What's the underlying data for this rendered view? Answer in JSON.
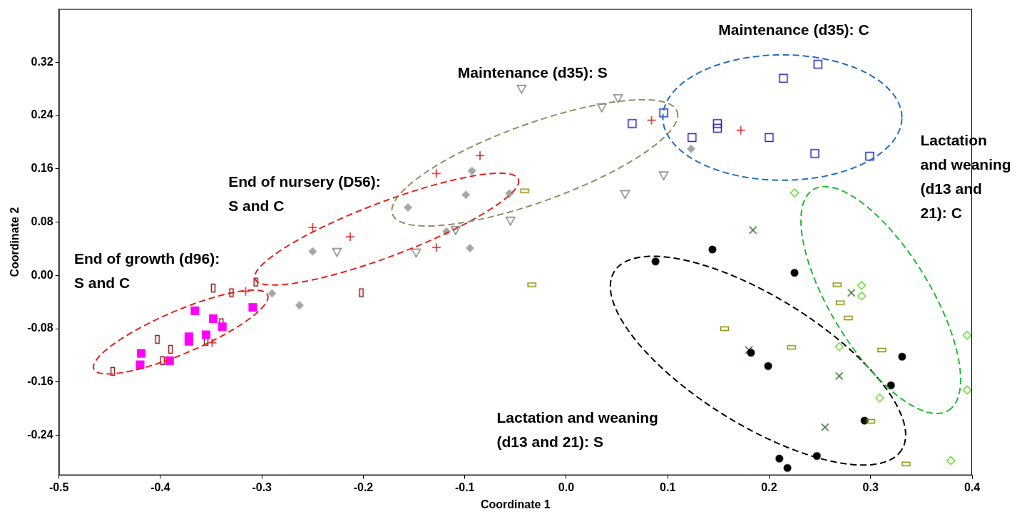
{
  "chart_data": {
    "type": "scatter",
    "x_label": "Coordinate 1",
    "y_label": "Coordinate 2",
    "xlim": [
      -0.5,
      0.4
    ],
    "xticks": [
      -0.5,
      -0.4,
      -0.3,
      -0.2,
      -0.1,
      {
        "value": 0,
        "label": "0.0"
      },
      0.1,
      0.2,
      0.3,
      0.4
    ],
    "ylim": [
      -0.3,
      0.4
    ],
    "yticks": [
      -0.24,
      -0.16,
      -0.08,
      {
        "value": 0,
        "label": "0.00"
      },
      0.08,
      0.16,
      0.24,
      0.32
    ],
    "grid": false,
    "series": [
      {
        "color": "#ff00ff",
        "marker": "square",
        "x": [
          -0.42,
          -0.419,
          -0.391,
          -0.372,
          -0.372,
          -0.366,
          -0.355,
          -0.348,
          -0.339,
          -0.309
        ],
        "y": [
          -0.134,
          -0.117,
          -0.128,
          -0.099,
          -0.092,
          -0.053,
          -0.089,
          -0.065,
          -0.077,
          -0.048
        ]
      },
      {
        "color": "#8b1a1a",
        "marker": "open_tall_rect",
        "x": [
          -0.447,
          -0.403,
          -0.39,
          -0.398,
          -0.355,
          -0.348,
          -0.34,
          -0.33,
          -0.306,
          -0.202
        ],
        "y": [
          -0.144,
          -0.096,
          -0.111,
          -0.128,
          -0.099,
          -0.019,
          -0.071,
          -0.026,
          -0.01,
          -0.026
        ]
      },
      {
        "color": "#d42020",
        "marker": "plus",
        "x": [
          -0.25,
          -0.213,
          -0.128,
          -0.128,
          -0.085,
          0.084,
          0.172,
          -0.316,
          -0.349
        ],
        "y": [
          0.072,
          0.058,
          0.153,
          0.042,
          0.18,
          0.233,
          0.218,
          -0.024,
          -0.101
        ]
      },
      {
        "color": "#a6a6a6",
        "marker": "diamond",
        "x": [
          -0.25,
          -0.263,
          -0.29,
          -0.156,
          -0.118,
          -0.099,
          -0.093,
          -0.095,
          -0.056,
          0.123
        ],
        "y": [
          0.036,
          -0.045,
          -0.027,
          0.102,
          0.066,
          0.121,
          0.157,
          0.041,
          0.123,
          0.19
        ]
      },
      {
        "color": "#7f7f7f",
        "marker": "open_triangle_down",
        "x": [
          -0.226,
          -0.148,
          -0.109,
          -0.055,
          -0.044,
          0.035,
          0.051,
          0.058,
          0.096
        ],
        "y": [
          0.035,
          0.034,
          0.068,
          0.082,
          0.28,
          0.252,
          0.266,
          0.122,
          0.15
        ]
      },
      {
        "color": "#2020c0",
        "marker": "open_square",
        "x": [
          0.065,
          0.214,
          0.248,
          0.096,
          0.124,
          0.149,
          0.149,
          0.2,
          0.245,
          0.299
        ],
        "y": [
          0.228,
          0.296,
          0.317,
          0.244,
          0.207,
          0.228,
          0.221,
          0.207,
          0.183,
          0.179
        ]
      },
      {
        "color": "#8c8c00",
        "marker": "open_wide_rect",
        "x": [
          -0.041,
          -0.034,
          0.156,
          0.222,
          0.267,
          0.27,
          0.278,
          0.311,
          0.3,
          0.335
        ],
        "y": [
          0.127,
          -0.014,
          -0.08,
          -0.108,
          -0.014,
          -0.041,
          -0.064,
          -0.112,
          -0.219,
          -0.283
        ]
      },
      {
        "color": "#000000",
        "marker": "circle",
        "x": [
          0.088,
          0.144,
          0.225,
          0.182,
          0.199,
          0.331,
          0.32,
          0.294,
          0.21,
          0.218,
          0.247
        ],
        "y": [
          0.021,
          0.039,
          0.004,
          -0.116,
          -0.136,
          -0.122,
          -0.165,
          -0.218,
          -0.275,
          -0.289,
          -0.271
        ]
      },
      {
        "color": "#2e6b2e",
        "marker": "x",
        "x": [
          0.184,
          0.18,
          0.281,
          0.269,
          0.255
        ],
        "y": [
          0.068,
          -0.112,
          -0.026,
          -0.151,
          -0.228
        ]
      },
      {
        "color": "#5fd92e",
        "marker": "open_diamond",
        "x": [
          0.225,
          0.291,
          0.291,
          0.269,
          0.395,
          0.309,
          0.395,
          0.379
        ],
        "y": [
          0.124,
          -0.015,
          -0.031,
          -0.107,
          -0.09,
          -0.184,
          -0.172,
          -0.278
        ]
      }
    ],
    "ellipses": [
      {
        "color": "#e8201c",
        "line_style": "dashed",
        "center": [
          -0.38,
          -0.085
        ],
        "axis1": [
          0.0856,
          0.0556
        ],
        "axis2": [
          0.0083,
          -0.0295
        ]
      },
      {
        "color": "#e8201c",
        "line_style": "dashed",
        "center": [
          -0.177,
          0.0695
        ],
        "axis1": [
          0.1298,
          0.0749
        ],
        "axis2": [
          0.0094,
          -0.038
        ]
      },
      {
        "color": "#9b8a5e",
        "line_style": "dashed",
        "center": [
          -0.031,
          0.169
        ],
        "axis1": [
          0.1403,
          0.077
        ],
        "axis2": [
          0.013,
          -0.0553
        ]
      },
      {
        "color": "#1f6fc0",
        "line_style": "dashed",
        "center": [
          0.213,
          0.237
        ],
        "axis1": [
          0.1178,
          0
        ],
        "axis2": [
          0,
          0.0941
        ]
      },
      {
        "color": "#000000",
        "line_style": "dashed",
        "center": [
          0.189,
          -0.128
        ],
        "axis1": [
          0.1417,
          -0.1337
        ],
        "axis2": [
          -0.0332,
          -0.0818
        ]
      },
      {
        "color": "#22bb33",
        "line_style": "dashed",
        "center": [
          0.31,
          -0.037
        ],
        "axis1": [
          0.0666,
          -0.1658
        ],
        "axis2": [
          0.0419,
          0.0391
        ]
      }
    ],
    "annotations": [
      {
        "text": [
          "Maintenance (d35): C"
        ],
        "x": 0.15,
        "y": 0.367
      },
      {
        "text": [
          "Maintenance (d35): S"
        ],
        "x": -0.107,
        "y": 0.303
      },
      {
        "text": [
          "End of nursery (D56):",
          "S and C"
        ],
        "x": -0.333,
        "y": 0.139
      },
      {
        "text": [
          "End of growth (d96):",
          "S and C"
        ],
        "x": -0.485,
        "y": 0.0235
      },
      {
        "text": [
          "Lactation",
          "and weaning",
          "(d13 and",
          "21): C"
        ],
        "x": 0.349,
        "y": 0.201
      },
      {
        "text": [
          "Lactation and weaning",
          "(d13 and 21): S"
        ],
        "x": -0.0685,
        "y": -0.215
      }
    ]
  }
}
